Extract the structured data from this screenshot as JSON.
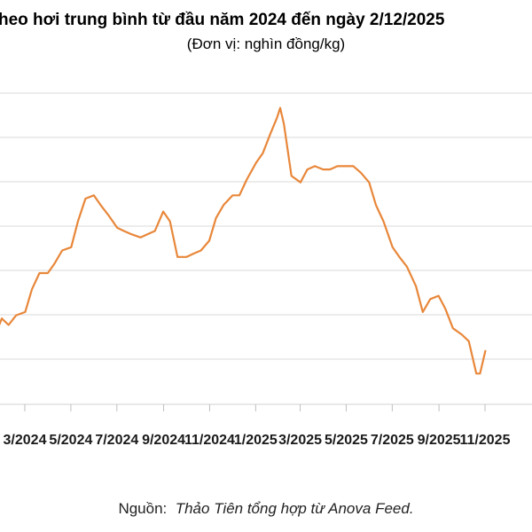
{
  "chart_data": {
    "type": "line",
    "title": "heo hơi trung bình từ đầu năm 2024 đến ngày 2/12/2025",
    "subtitle": "(Đơn vị: nghìn đồng/kg)",
    "source_label": "Nguồn:",
    "source_text": "Thảo Tiên tổng hợp từ Anova Feed.",
    "x_tick_labels": [
      "3/2024",
      "5/2024",
      "7/2024",
      "9/2024",
      "11/2024",
      "1/2025",
      "3/2025",
      "5/2025",
      "7/2025",
      "9/2025",
      "11/2025"
    ],
    "gridlines": true,
    "line_color": "#E8873A",
    "grid_color": "#d9d9d9",
    "series": [
      {
        "x": [
          "2024-02-01",
          "2024-02-10",
          "2024-02-20",
          "2024-03-01",
          "2024-03-10",
          "2024-03-20",
          "2024-04-01",
          "2024-04-10",
          "2024-04-20",
          "2024-05-01",
          "2024-05-10",
          "2024-05-20",
          "2024-06-01",
          "2024-06-10",
          "2024-06-20",
          "2024-07-01",
          "2024-07-10",
          "2024-07-20",
          "2024-08-01",
          "2024-08-10",
          "2024-08-20",
          "2024-09-01",
          "2024-09-10",
          "2024-09-20",
          "2024-10-01",
          "2024-10-10",
          "2024-10-20",
          "2024-11-01",
          "2024-11-10",
          "2024-11-20",
          "2024-12-01",
          "2024-12-10",
          "2024-12-20",
          "2025-01-01",
          "2025-01-10",
          "2025-01-20",
          "2025-02-01",
          "2025-02-10",
          "2025-02-20",
          "2025-03-01",
          "2025-03-05",
          "2025-03-10",
          "2025-03-20",
          "2025-04-01",
          "2025-04-10",
          "2025-04-20",
          "2025-05-01",
          "2025-05-10",
          "2025-05-20",
          "2025-06-01",
          "2025-06-10",
          "2025-06-20",
          "2025-07-01",
          "2025-07-10",
          "2025-07-20",
          "2025-08-01",
          "2025-08-10",
          "2025-08-20",
          "2025-09-01",
          "2025-09-10",
          "2025-09-20",
          "2025-10-01",
          "2025-10-10",
          "2025-10-20",
          "2025-11-01",
          "2025-11-10",
          "2025-11-20",
          "2025-11-25",
          "2025-12-02"
        ],
        "y": [
          51.0,
          53.0,
          59.0,
          62.0,
          61.0,
          62.5,
          63.0,
          66.5,
          69.0,
          69.0,
          70.5,
          72.5,
          73.0,
          77.0,
          80.5,
          81.0,
          79.5,
          78.0,
          76.0,
          75.5,
          75.0,
          74.5,
          75.0,
          75.5,
          78.5,
          77.0,
          71.5,
          71.5,
          72.0,
          72.5,
          74.0,
          77.5,
          79.5,
          81.0,
          81.0,
          83.5,
          86.0,
          87.5,
          90.5,
          93.0,
          94.5,
          92.0,
          84.0,
          83.0,
          85.0,
          85.5,
          85.0,
          85.0,
          85.5,
          85.5,
          85.5,
          84.5,
          83.0,
          79.5,
          77.0,
          73.0,
          71.5,
          70.0,
          67.0,
          63.0,
          65.0,
          65.5,
          63.5,
          60.5,
          59.5,
          58.5,
          53.5,
          53.5,
          57.0
        ]
      }
    ]
  }
}
